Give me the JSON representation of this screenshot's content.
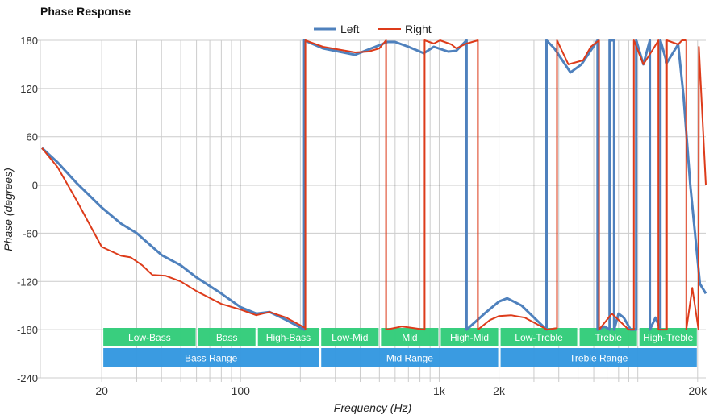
{
  "chart_data": {
    "type": "line",
    "title": "Phase Response",
    "xlabel": "Frequency (Hz)",
    "ylabel": "Phase (degrees)",
    "x_scale": "log",
    "xlim": [
      10,
      22000
    ],
    "ylim": [
      -240,
      180
    ],
    "grid": true,
    "legend_position": "top",
    "x_ticks": [
      {
        "value": 20,
        "label": "20"
      },
      {
        "value": 100,
        "label": "100"
      },
      {
        "value": 1000,
        "label": "1k"
      },
      {
        "value": 2000,
        "label": "2k"
      },
      {
        "value": 20000,
        "label": "20k"
      }
    ],
    "y_ticks": [
      {
        "value": 180,
        "label": "180"
      },
      {
        "value": 120,
        "label": "120"
      },
      {
        "value": 60,
        "label": "60"
      },
      {
        "value": 0,
        "label": "0"
      },
      {
        "value": -60,
        "label": "-60"
      },
      {
        "value": -120,
        "label": "-120"
      },
      {
        "value": -180,
        "label": "-180"
      },
      {
        "value": -240,
        "label": "-240"
      }
    ],
    "series": [
      {
        "name": "Left",
        "color": "#4f81bd",
        "points": [
          [
            10,
            46
          ],
          [
            12,
            28
          ],
          [
            15,
            2
          ],
          [
            20,
            -28
          ],
          [
            25,
            -48
          ],
          [
            30,
            -60
          ],
          [
            40,
            -87
          ],
          [
            50,
            -100
          ],
          [
            60,
            -115
          ],
          [
            80,
            -135
          ],
          [
            100,
            -152
          ],
          [
            120,
            -160
          ],
          [
            140,
            -158
          ],
          [
            170,
            -168
          ],
          [
            209,
            -180
          ],
          [
            209,
            180
          ],
          [
            260,
            170
          ],
          [
            377,
            162
          ],
          [
            550,
            178
          ],
          [
            600,
            178
          ],
          [
            700,
            172
          ],
          [
            837,
            164
          ],
          [
            940,
            172
          ],
          [
            1110,
            166
          ],
          [
            1220,
            167
          ],
          [
            1374,
            180
          ],
          [
            1374,
            -180
          ],
          [
            1690,
            -160
          ],
          [
            2000,
            -145
          ],
          [
            2200,
            -141
          ],
          [
            2600,
            -150
          ],
          [
            3470,
            -180
          ],
          [
            3470,
            180
          ],
          [
            3800,
            170
          ],
          [
            4580,
            140
          ],
          [
            5200,
            150
          ],
          [
            6270,
            180
          ],
          [
            6270,
            -180
          ],
          [
            6800,
            -176
          ],
          [
            7210,
            -180
          ],
          [
            7210,
            180
          ],
          [
            7600,
            180
          ],
          [
            7600,
            -180
          ],
          [
            8000,
            -160
          ],
          [
            8500,
            -165
          ],
          [
            9200,
            -180
          ],
          [
            9820,
            -180
          ],
          [
            9820,
            180
          ],
          [
            10670,
            150
          ],
          [
            11500,
            180
          ],
          [
            11500,
            -180
          ],
          [
            12280,
            -165
          ],
          [
            13000,
            -180
          ],
          [
            13000,
            180
          ],
          [
            14000,
            152
          ],
          [
            15960,
            175
          ],
          [
            17000,
            110
          ],
          [
            18370,
            0
          ],
          [
            20550,
            -123
          ],
          [
            22000,
            -135
          ]
        ]
      },
      {
        "name": "Right",
        "color": "#dd3b1a",
        "points": [
          [
            10,
            46
          ],
          [
            12,
            22
          ],
          [
            15,
            -20
          ],
          [
            20,
            -77
          ],
          [
            25,
            -88
          ],
          [
            28,
            -90
          ],
          [
            32,
            -100
          ],
          [
            36,
            -112
          ],
          [
            42,
            -113
          ],
          [
            50,
            -120
          ],
          [
            60,
            -132
          ],
          [
            80,
            -148
          ],
          [
            100,
            -155
          ],
          [
            120,
            -162
          ],
          [
            140,
            -158
          ],
          [
            170,
            -165
          ],
          [
            212,
            -178
          ],
          [
            212,
            -180
          ],
          [
            212,
            180
          ],
          [
            260,
            172
          ],
          [
            377,
            165
          ],
          [
            440,
            166
          ],
          [
            500,
            170
          ],
          [
            540,
            180
          ],
          [
            540,
            -180
          ],
          [
            650,
            -176
          ],
          [
            845,
            -180
          ],
          [
            845,
            180
          ],
          [
            940,
            176
          ],
          [
            1010,
            180
          ],
          [
            1150,
            175
          ],
          [
            1220,
            170
          ],
          [
            1374,
            176
          ],
          [
            1566,
            180
          ],
          [
            1566,
            -180
          ],
          [
            1800,
            -168
          ],
          [
            2000,
            -163
          ],
          [
            2300,
            -162
          ],
          [
            2700,
            -165
          ],
          [
            3500,
            -180
          ],
          [
            3920,
            -178
          ],
          [
            3920,
            180
          ],
          [
            4470,
            150
          ],
          [
            5300,
            155
          ],
          [
            5800,
            172
          ],
          [
            6380,
            180
          ],
          [
            6380,
            -180
          ],
          [
            7400,
            -160
          ],
          [
            9000,
            -180
          ],
          [
            9550,
            -180
          ],
          [
            9550,
            180
          ],
          [
            10670,
            150
          ],
          [
            12000,
            170
          ],
          [
            12700,
            180
          ],
          [
            12700,
            -180
          ],
          [
            14000,
            -180
          ],
          [
            14000,
            180
          ],
          [
            15960,
            175
          ],
          [
            16700,
            180
          ],
          [
            17540,
            180
          ],
          [
            17540,
            -180
          ],
          [
            18800,
            -128
          ],
          [
            20200,
            -180
          ],
          [
            20300,
            172
          ],
          [
            22000,
            0
          ]
        ]
      }
    ],
    "bands": [
      {
        "label": "Low-Bass",
        "from": 20,
        "to": 60
      },
      {
        "label": "Bass",
        "from": 60,
        "to": 120
      },
      {
        "label": "High-Bass",
        "from": 120,
        "to": 250
      },
      {
        "label": "Low-Mid",
        "from": 250,
        "to": 500
      },
      {
        "label": "Mid",
        "from": 500,
        "to": 1000
      },
      {
        "label": "High-Mid",
        "from": 1000,
        "to": 2000
      },
      {
        "label": "Low-Treble",
        "from": 2000,
        "to": 5000
      },
      {
        "label": "Treble",
        "from": 5000,
        "to": 10000
      },
      {
        "label": "High-Treble",
        "from": 10000,
        "to": 20000
      }
    ],
    "ranges": [
      {
        "label": "Bass Range",
        "from": 20,
        "to": 250
      },
      {
        "label": "Mid Range",
        "from": 250,
        "to": 2000
      },
      {
        "label": "Treble Range",
        "from": 2000,
        "to": 20000
      }
    ],
    "colors": {
      "band": "#33cc7a",
      "range": "#3498e0",
      "grid": "#cccccc",
      "zero_line": "#333333"
    }
  }
}
